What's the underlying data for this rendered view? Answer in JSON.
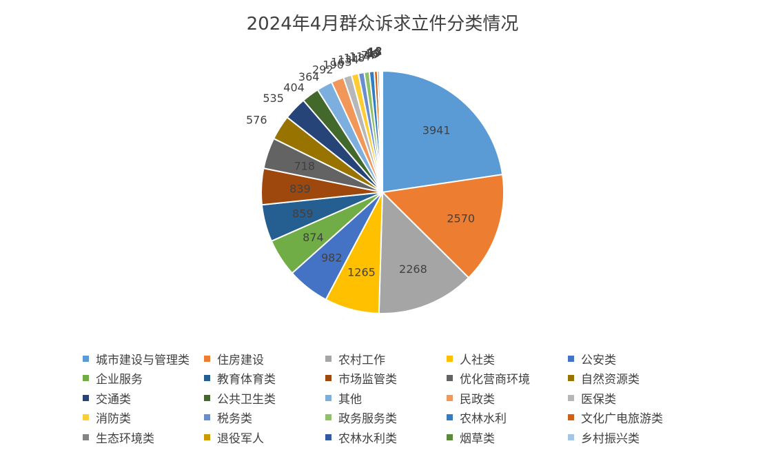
{
  "chart_data": {
    "type": "pie",
    "title": "2024年4月群众诉求立件分类情况",
    "categories": [
      "城市建设与管理类",
      "住房建设",
      "农村工作",
      "人社类",
      "公安类",
      "企业服务",
      "教育体育类",
      "市场监管类",
      "优化营商环境",
      "自然资源类",
      "交通类",
      "公共卫生类",
      "其他",
      "民政类",
      "医保类",
      "消防类",
      "税务类",
      "政务服务类",
      "农林水利",
      "文化广电旅游类",
      "生态环境类",
      "退役军人",
      "农林水利类",
      "烟草类",
      "乡村振兴类"
    ],
    "values": [
      3941,
      2570,
      2268,
      1265,
      982,
      874,
      859,
      839,
      718,
      576,
      535,
      404,
      364,
      292,
      190,
      163,
      134,
      118,
      114,
      74,
      46,
      30,
      19,
      18,
      2
    ],
    "label_colors": [
      "dark",
      "dark",
      "dark",
      "dark",
      "dark",
      "dark",
      "dark",
      "dark",
      "dark",
      "dark",
      "dark",
      "dark",
      "dark",
      "dark",
      "dark",
      "dark",
      "dark",
      "dark",
      "dark",
      "dark",
      "dark",
      "dark",
      "dark",
      "dark",
      "dark"
    ],
    "colors": [
      "#5B9BD5",
      "#ED7D31",
      "#A5A5A5",
      "#FFC000",
      "#4472C4",
      "#70AD47",
      "#255E91",
      "#9E480E",
      "#636363",
      "#997300",
      "#264478",
      "#43682B",
      "#7CAFDD",
      "#F1975A",
      "#B7B7B7",
      "#FFCD33",
      "#698ED0",
      "#8CC168",
      "#327DC2",
      "#D26012",
      "#848484",
      "#CC9A00",
      "#335AA1",
      "#5A8A39",
      "#A3C6E7"
    ],
    "legend_position": "bottom"
  }
}
